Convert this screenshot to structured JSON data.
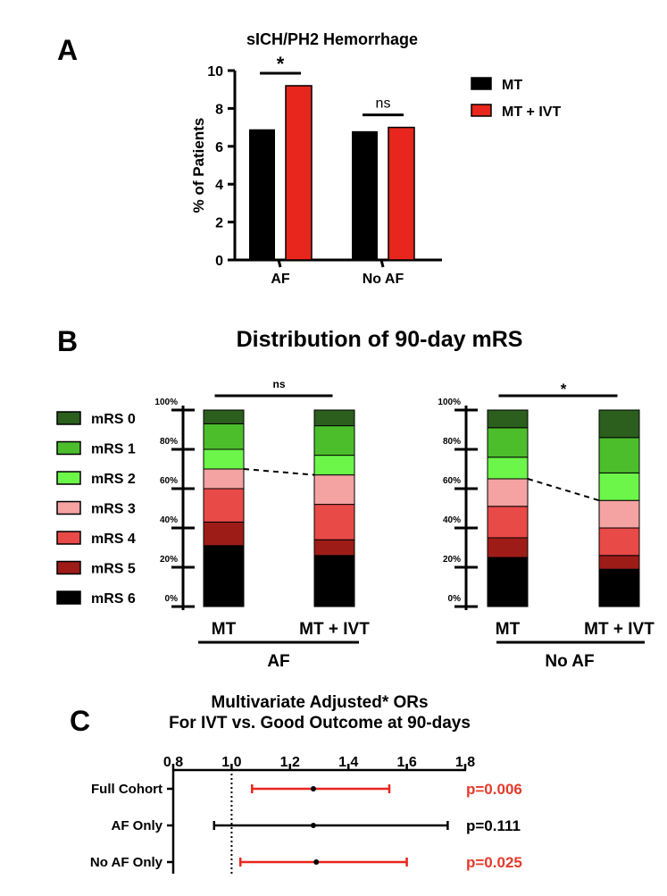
{
  "panels": {
    "a": "A",
    "b": "B",
    "c": "C"
  },
  "colors": {
    "mt": "#000000",
    "mt_ivt": "#e8261d",
    "significant_text": "#e53a2c",
    "ns_text": "#000000",
    "mrs": [
      "#2c5e1e",
      "#4cbe2c",
      "#6cf64a",
      "#f4a2a2",
      "#e84a48",
      "#9e1c18",
      "#000000"
    ]
  },
  "chart_data": [
    {
      "id": "A",
      "type": "bar",
      "title": "sICH/PH2 Hemorrhage",
      "ylabel": "% of Patients",
      "ylim": [
        0,
        10
      ],
      "yticks": [
        0,
        2,
        4,
        6,
        8,
        10
      ],
      "categories": [
        "AF",
        "No AF"
      ],
      "series": [
        {
          "name": "MT",
          "values": [
            6.9,
            6.8
          ]
        },
        {
          "name": "MT + IVT",
          "values": [
            9.2,
            7.0
          ]
        }
      ],
      "significance": [
        "*",
        "ns"
      ],
      "legend": [
        "MT",
        "MT + IVT"
      ]
    },
    {
      "id": "B",
      "type": "bar",
      "stacked": true,
      "title": "Distribution of 90-day mRS",
      "legend": [
        "mRS 0",
        "mRS 1",
        "mRS 2",
        "mRS 3",
        "mRS 4",
        "mRS 5",
        "mRS 6"
      ],
      "yticks": [
        "0%",
        "20%",
        "40%",
        "60%",
        "80%",
        "100%"
      ],
      "groups": [
        {
          "name": "AF",
          "significance": "ns",
          "bars": [
            {
              "label": "MT",
              "mrs6": 31,
              "mrs5": 12,
              "mrs4": 17,
              "mrs3": 10,
              "mrs2": 10,
              "mrs1": 13,
              "mrs0": 7
            },
            {
              "label": "MT + IVT",
              "mrs6": 26,
              "mrs5": 8,
              "mrs4": 18,
              "mrs3": 15,
              "mrs2": 10,
              "mrs1": 15,
              "mrs0": 8
            }
          ]
        },
        {
          "name": "No AF",
          "significance": "*",
          "bars": [
            {
              "label": "MT",
              "mrs6": 25,
              "mrs5": 10,
              "mrs4": 16,
              "mrs3": 14,
              "mrs2": 11,
              "mrs1": 15,
              "mrs0": 9
            },
            {
              "label": "MT + IVT",
              "mrs6": 19,
              "mrs5": 7,
              "mrs4": 14,
              "mrs3": 14,
              "mrs2": 14,
              "mrs1": 18,
              "mrs0": 14
            }
          ]
        }
      ]
    },
    {
      "id": "C",
      "type": "scatter",
      "subtype": "forest",
      "title_line1": "Multivariate Adjusted* ORs",
      "title_line2": "For IVT vs. Good Outcome at 90-days",
      "xlim": [
        0.8,
        1.8
      ],
      "xticks": [
        "0.8",
        "1.0",
        "1.2",
        "1.4",
        "1.6",
        "1.8"
      ],
      "reference": 1.0,
      "rows": [
        {
          "label": "Full Cohort",
          "or": 1.28,
          "lo": 1.07,
          "hi": 1.54,
          "p": "p=0.006",
          "significant": true
        },
        {
          "label": "AF Only",
          "or": 1.28,
          "lo": 0.94,
          "hi": 1.74,
          "p": "p=0.111",
          "significant": false
        },
        {
          "label": "No AF Only",
          "or": 1.29,
          "lo": 1.03,
          "hi": 1.6,
          "p": "p=0.025",
          "significant": true
        }
      ]
    }
  ]
}
